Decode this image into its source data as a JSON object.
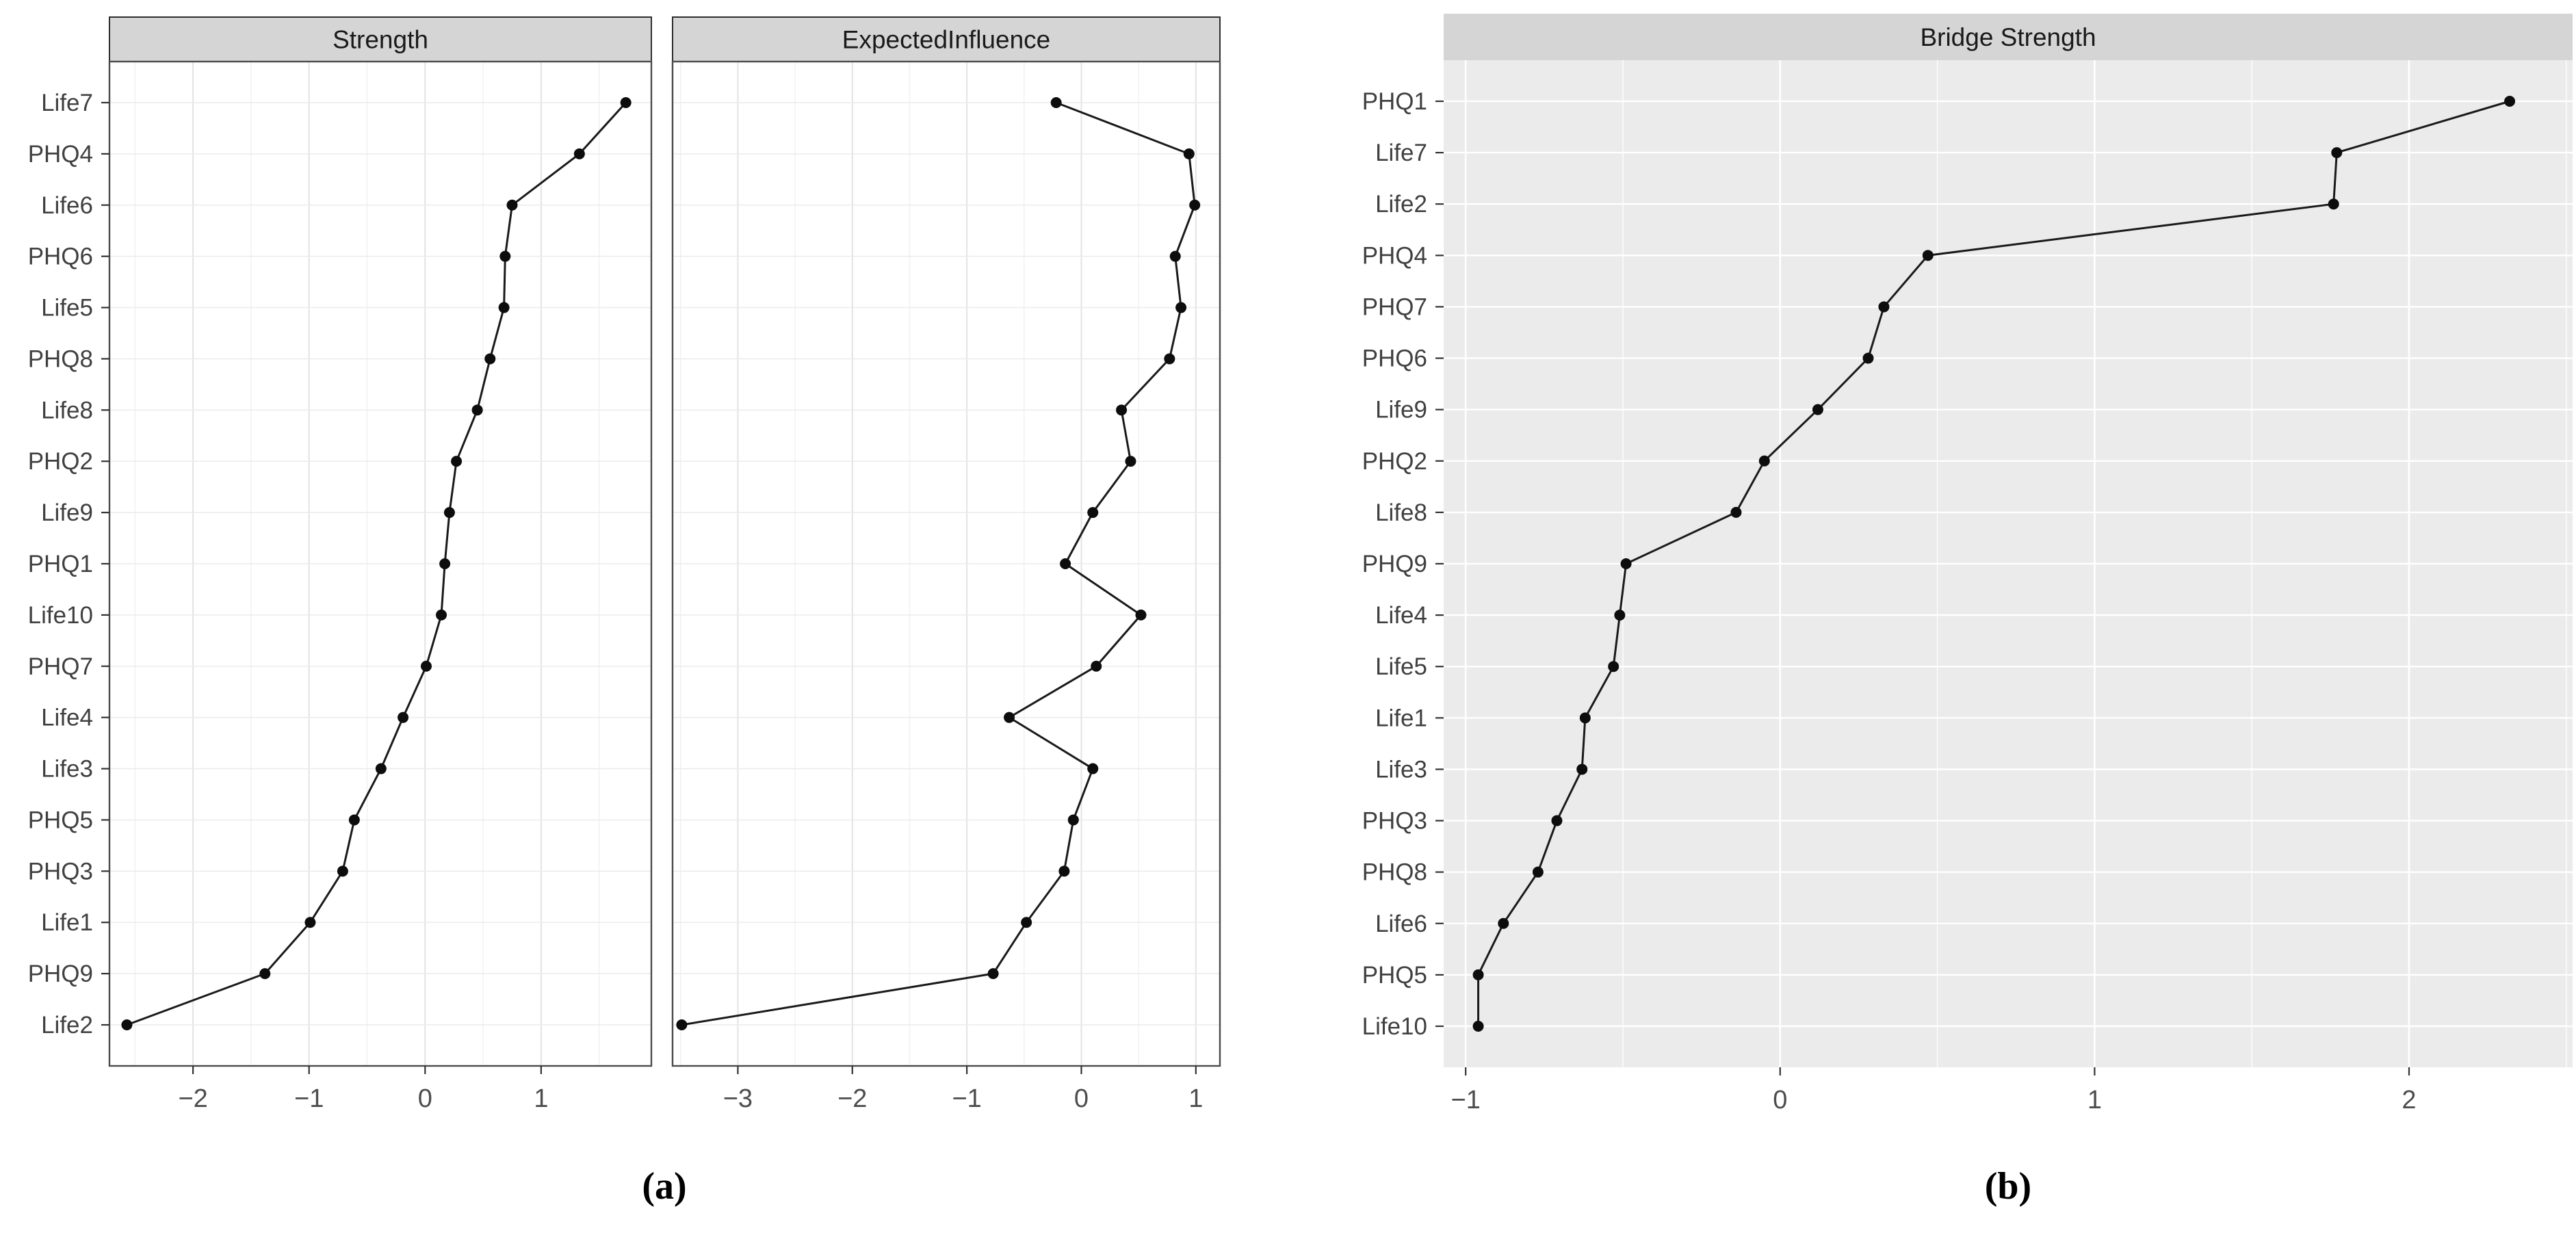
{
  "figure_a": {
    "caption": "(a)",
    "y_axis_categories": [
      "Life7",
      "PHQ4",
      "Life6",
      "PHQ6",
      "Life5",
      "PHQ8",
      "Life8",
      "PHQ2",
      "Life9",
      "PHQ1",
      "Life10",
      "PHQ7",
      "Life4",
      "Life3",
      "PHQ5",
      "PHQ3",
      "Life1",
      "PHQ9",
      "Life2"
    ]
  },
  "figure_b": {
    "caption": "(b)"
  },
  "chart_data": [
    {
      "id": "strength",
      "type": "line",
      "orientation": "horizontal-dot-line",
      "title": "Strength",
      "categories": [
        "Life7",
        "PHQ4",
        "Life6",
        "PHQ6",
        "Life5",
        "PHQ8",
        "Life8",
        "PHQ2",
        "Life9",
        "PHQ1",
        "Life10",
        "PHQ7",
        "Life4",
        "Life3",
        "PHQ5",
        "PHQ3",
        "Life1",
        "PHQ9",
        "Life2"
      ],
      "values": [
        1.73,
        1.33,
        0.75,
        0.69,
        0.68,
        0.56,
        0.45,
        0.27,
        0.21,
        0.17,
        0.14,
        0.01,
        -0.19,
        -0.38,
        -0.61,
        -0.71,
        -0.99,
        -1.38,
        -2.57
      ],
      "xticks": [
        -2,
        -1,
        0,
        1
      ],
      "xlim": [
        -2.72,
        1.95
      ],
      "xlabel": "",
      "ylabel": "",
      "legend": "none",
      "theme": "bw",
      "grid": "vertical major+minor, horizontal per category"
    },
    {
      "id": "expected-influence",
      "type": "line",
      "orientation": "horizontal-dot-line",
      "title": "ExpectedInfluence",
      "categories": [
        "Life7",
        "PHQ4",
        "Life6",
        "PHQ6",
        "Life5",
        "PHQ8",
        "Life8",
        "PHQ2",
        "Life9",
        "PHQ1",
        "Life10",
        "PHQ7",
        "Life4",
        "Life3",
        "PHQ5",
        "PHQ3",
        "Life1",
        "PHQ9",
        "Life2"
      ],
      "values": [
        -0.22,
        0.94,
        0.99,
        0.82,
        0.87,
        0.77,
        0.35,
        0.43,
        0.1,
        -0.14,
        0.52,
        0.13,
        -0.63,
        0.1,
        -0.07,
        -0.15,
        -0.48,
        -0.77,
        -3.49
      ],
      "xticks": [
        -3,
        -2,
        -1,
        0,
        1
      ],
      "xlim": [
        -3.57,
        1.21
      ],
      "xlabel": "",
      "ylabel": "",
      "legend": "none",
      "theme": "bw",
      "grid": "vertical major+minor, horizontal per category"
    },
    {
      "id": "bridge-strength",
      "type": "line",
      "orientation": "horizontal-dot-line",
      "title": "Bridge Strength",
      "categories": [
        "PHQ1",
        "Life7",
        "Life2",
        "PHQ4",
        "PHQ7",
        "PHQ6",
        "Life9",
        "PHQ2",
        "Life8",
        "PHQ9",
        "Life4",
        "Life5",
        "Life1",
        "Life3",
        "PHQ3",
        "PHQ8",
        "Life6",
        "PHQ5",
        "Life10"
      ],
      "values": [
        2.32,
        1.77,
        1.76,
        0.47,
        0.33,
        0.28,
        0.12,
        -0.05,
        -0.14,
        -0.49,
        -0.51,
        -0.53,
        -0.62,
        -0.63,
        -0.71,
        -0.77,
        -0.88,
        -0.96,
        -0.96
      ],
      "xticks": [
        -1,
        0,
        1,
        2
      ],
      "xlim": [
        -1.07,
        2.52
      ],
      "xlabel": "",
      "ylabel": "",
      "legend": "none",
      "theme": "gray",
      "grid": "vertical major+minor white, horizontal per category white"
    }
  ],
  "colors": {
    "line": "#1a1a1a",
    "point": "#0d0d0d",
    "strip_background": "#d5d5d5",
    "strip_border": "#2e2e2e",
    "panel_border": "#4b4b4b",
    "panel_background_gray": "#ebebeb",
    "grid_white": "#ffffff",
    "grid_light_major": "#e3e3e3",
    "grid_light_minor": "#f0f0f0",
    "axis_tick": "#333333",
    "axis_text": "#4d4d4d"
  }
}
